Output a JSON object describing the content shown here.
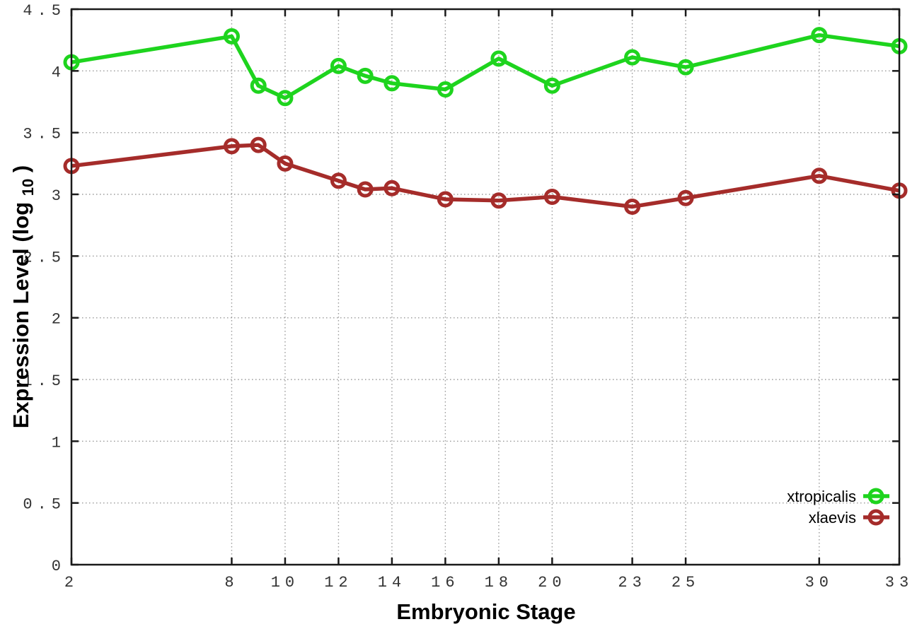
{
  "figure": {
    "background": "#ffffff",
    "border_color": "#1a1a1a",
    "grid_color": "#9a9a9a",
    "tick_label_color": "#333333"
  },
  "chart_data": {
    "type": "line",
    "title": "",
    "xlabel": "Embryonic Stage",
    "ylabel": "Expression Level (log10)",
    "ylabel_parts": {
      "main": "Expression Level (log",
      "sub": "10",
      "close": ")"
    },
    "x": [
      2,
      8,
      9,
      10,
      12,
      13,
      14,
      16,
      18,
      20,
      23,
      25,
      30,
      33
    ],
    "xlim": [
      2,
      33
    ],
    "x_ticks": [
      2,
      8,
      10,
      12,
      14,
      16,
      18,
      20,
      23,
      25,
      30,
      33
    ],
    "x_tick_labels": [
      "2",
      "8",
      "10",
      "12",
      "14",
      "16",
      "18",
      "20",
      "23",
      "25",
      "30",
      "33"
    ],
    "ylim": [
      0,
      4.5
    ],
    "y_ticks": [
      0,
      0.5,
      1,
      1.5,
      2,
      2.5,
      3,
      3.5,
      4,
      4.5
    ],
    "y_tick_labels": [
      "0",
      "0.5",
      "1",
      "1.5",
      "2",
      "2.5",
      "3",
      "3.5",
      "4",
      "4.5"
    ],
    "grid": true,
    "legend_position": "inside-bottom-right",
    "series": [
      {
        "name": "xtropicalis",
        "color": "#1ed41e",
        "values": [
          4.07,
          4.28,
          3.88,
          3.78,
          4.04,
          3.96,
          3.9,
          3.85,
          4.1,
          3.88,
          4.11,
          4.03,
          4.29,
          4.2
        ]
      },
      {
        "name": "xlaevis",
        "color": "#a52c2a",
        "values": [
          3.23,
          3.39,
          3.4,
          3.25,
          3.11,
          3.04,
          3.05,
          2.96,
          2.95,
          2.98,
          2.9,
          2.97,
          3.15,
          3.03
        ]
      }
    ]
  }
}
